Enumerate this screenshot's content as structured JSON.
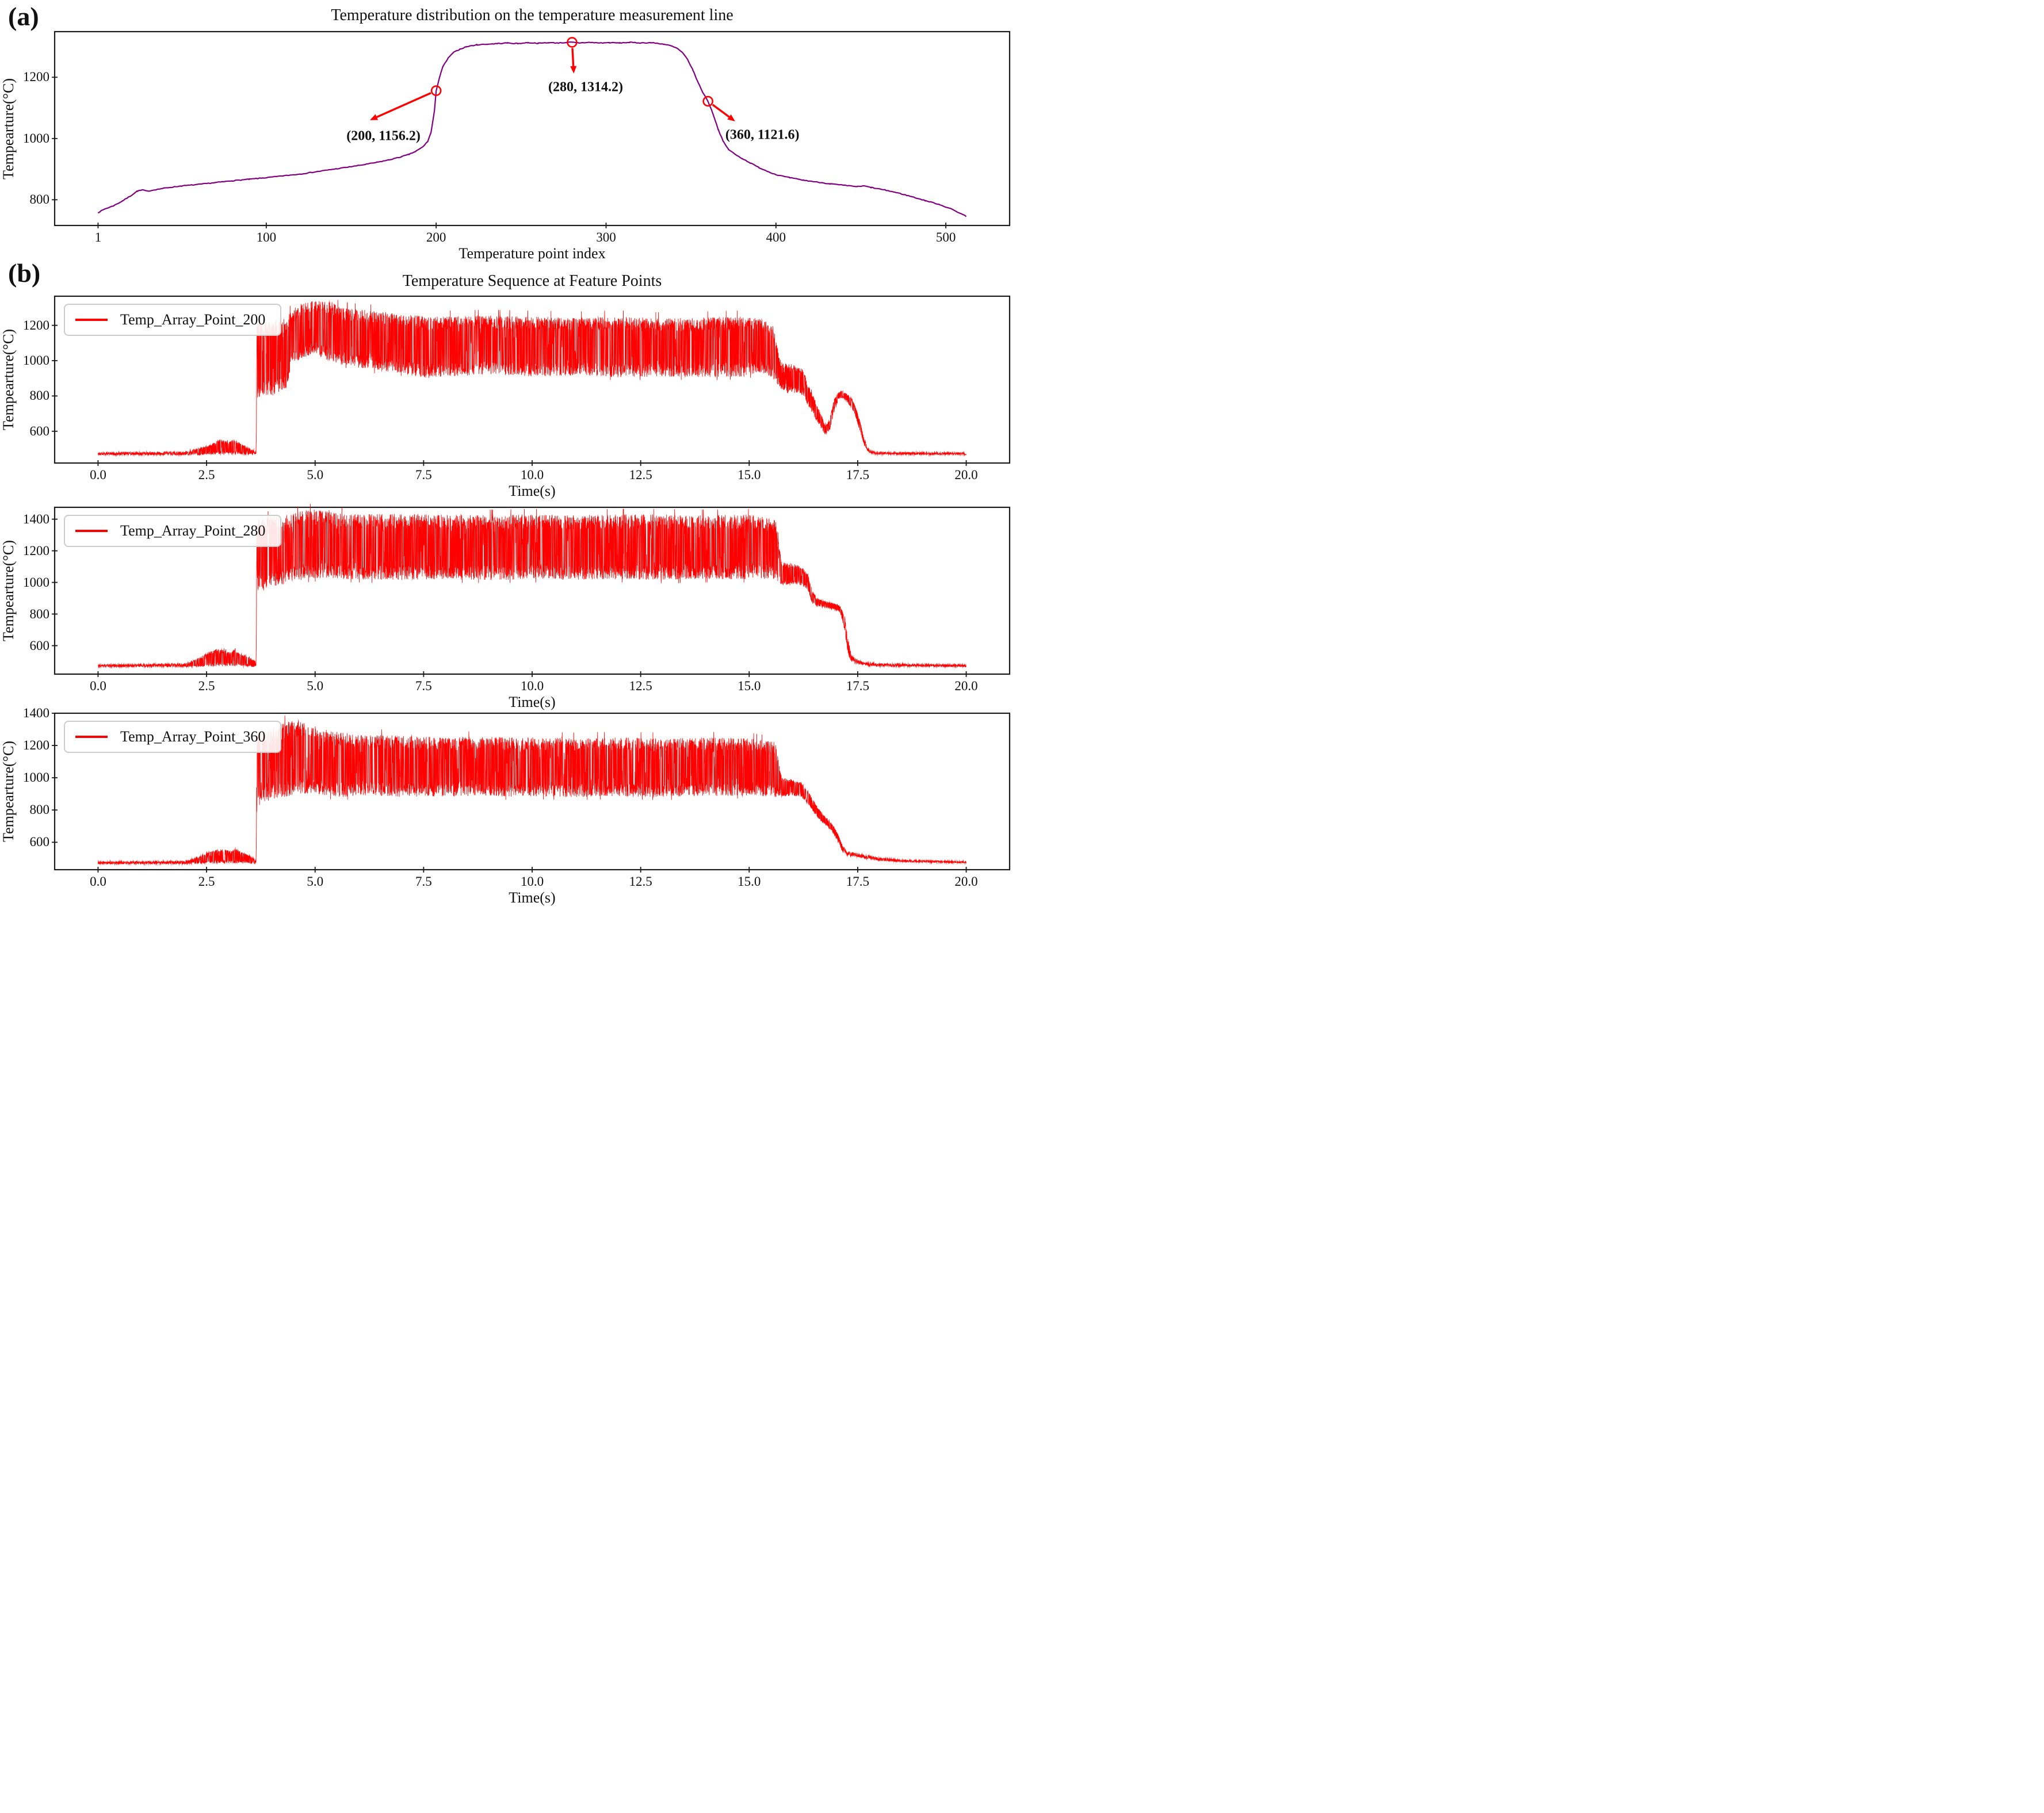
{
  "page": {
    "panel_a_label": "(a)",
    "panel_b_label": "(b)"
  },
  "chart_data": [
    {
      "type": "line",
      "title": "Temperature distribution on the temperature measurement line",
      "xlabel": "Temperature point index",
      "ylabel": "Tempearture(°C)",
      "legend_position": "none",
      "grid": false,
      "xticks": [
        "1",
        "100",
        "200",
        "300",
        "400",
        "500"
      ],
      "yticks": [
        "800",
        "1000",
        "1200"
      ],
      "xlim": [
        -24.55,
        537.55
      ],
      "ylim": [
        716,
        1349
      ],
      "line_color": "#800080",
      "annotation_color": "#ff0000",
      "annotations": [
        {
          "label": "(200, 1156.2)",
          "point": [
            200,
            1156.2
          ],
          "arrow_tip": [
            161,
            1060
          ],
          "label_center": [
            169,
            1008
          ]
        },
        {
          "label": "(280, 1314.2)",
          "point": [
            280,
            1314.2
          ],
          "arrow_tip": [
            281,
            1212
          ],
          "label_center": [
            288,
            1166
          ]
        },
        {
          "label": "(360, 1121.6)",
          "point": [
            360,
            1121.6
          ],
          "arrow_tip": [
            376,
            1056
          ],
          "label_center": [
            392,
            1010
          ]
        }
      ],
      "points": [
        [
          1,
          758
        ],
        [
          5,
          770
        ],
        [
          10,
          780
        ],
        [
          15,
          795
        ],
        [
          20,
          812
        ],
        [
          24,
          828
        ],
        [
          27,
          832
        ],
        [
          30,
          828
        ],
        [
          35,
          833
        ],
        [
          40,
          838
        ],
        [
          50,
          845
        ],
        [
          60,
          850
        ],
        [
          70,
          856
        ],
        [
          80,
          862
        ],
        [
          90,
          867
        ],
        [
          100,
          872
        ],
        [
          110,
          878
        ],
        [
          120,
          884
        ],
        [
          130,
          892
        ],
        [
          140,
          900
        ],
        [
          150,
          908
        ],
        [
          158,
          915
        ],
        [
          165,
          922
        ],
        [
          172,
          930
        ],
        [
          178,
          938
        ],
        [
          184,
          948
        ],
        [
          188,
          958
        ],
        [
          192,
          972
        ],
        [
          195,
          990
        ],
        [
          197,
          1020
        ],
        [
          199,
          1090
        ],
        [
          200,
          1156.2
        ],
        [
          202,
          1200
        ],
        [
          204,
          1235
        ],
        [
          207,
          1262
        ],
        [
          210,
          1280
        ],
        [
          214,
          1292
        ],
        [
          218,
          1300
        ],
        [
          224,
          1306
        ],
        [
          230,
          1308
        ],
        [
          236,
          1310
        ],
        [
          242,
          1312
        ],
        [
          248,
          1310
        ],
        [
          254,
          1313
        ],
        [
          260,
          1311
        ],
        [
          266,
          1313
        ],
        [
          272,
          1312
        ],
        [
          278,
          1314
        ],
        [
          280,
          1314.2
        ],
        [
          284,
          1312
        ],
        [
          290,
          1314
        ],
        [
          296,
          1312
        ],
        [
          302,
          1313
        ],
        [
          308,
          1312
        ],
        [
          314,
          1314
        ],
        [
          320,
          1312
        ],
        [
          326,
          1313
        ],
        [
          330,
          1311
        ],
        [
          334,
          1308
        ],
        [
          338,
          1303
        ],
        [
          342,
          1294
        ],
        [
          345,
          1280
        ],
        [
          348,
          1258
        ],
        [
          351,
          1225
        ],
        [
          354,
          1185
        ],
        [
          357,
          1150
        ],
        [
          360,
          1121.6
        ],
        [
          363,
          1080
        ],
        [
          366,
          1030
        ],
        [
          369,
          990
        ],
        [
          372,
          965
        ],
        [
          376,
          948
        ],
        [
          380,
          935
        ],
        [
          385,
          920
        ],
        [
          390,
          905
        ],
        [
          395,
          893
        ],
        [
          400,
          882
        ],
        [
          408,
          872
        ],
        [
          416,
          864
        ],
        [
          424,
          858
        ],
        [
          432,
          852
        ],
        [
          440,
          847
        ],
        [
          448,
          843
        ],
        [
          452,
          845
        ],
        [
          456,
          840
        ],
        [
          464,
          832
        ],
        [
          472,
          822
        ],
        [
          480,
          810
        ],
        [
          488,
          797
        ],
        [
          496,
          785
        ],
        [
          504,
          768
        ],
        [
          512,
          746
        ]
      ]
    },
    {
      "type": "line",
      "title": "Temperature Sequence at Feature Points",
      "legend": "Temp_Array_Point_200",
      "xlabel": "Time(s)",
      "ylabel": "Tempearture(°C)",
      "legend_position": "upper left",
      "grid": false,
      "xticks": [
        "0.0",
        "2.5",
        "5.0",
        "7.5",
        "10.0",
        "12.5",
        "15.0",
        "17.5",
        "20.0"
      ],
      "yticks": [
        "600",
        "800",
        "1000",
        "1200"
      ],
      "xlim": [
        -1,
        21
      ],
      "ylim": [
        420,
        1365
      ],
      "line_color": "#ff0000",
      "envelope": [
        [
          0.0,
          465,
          480
        ],
        [
          2.0,
          465,
          485
        ],
        [
          2.3,
          465,
          505
        ],
        [
          2.6,
          468,
          525
        ],
        [
          2.8,
          470,
          556
        ],
        [
          3.0,
          470,
          540
        ],
        [
          3.1,
          472,
          552
        ],
        [
          3.25,
          470,
          535
        ],
        [
          3.45,
          468,
          510
        ],
        [
          3.6,
          466,
          495
        ],
        [
          3.64,
          466,
          480
        ],
        [
          3.66,
          790,
          1215
        ],
        [
          4.0,
          800,
          1230
        ],
        [
          4.35,
          830,
          1240
        ],
        [
          4.45,
          980,
          1290
        ],
        [
          4.7,
          1010,
          1325
        ],
        [
          5.0,
          1040,
          1340
        ],
        [
          5.3,
          1000,
          1345
        ],
        [
          5.6,
          980,
          1300
        ],
        [
          6.0,
          960,
          1290
        ],
        [
          6.5,
          940,
          1280
        ],
        [
          7.0,
          930,
          1260
        ],
        [
          7.5,
          900,
          1260
        ],
        [
          8.0,
          910,
          1250
        ],
        [
          9.0,
          920,
          1255
        ],
        [
          10.0,
          910,
          1250
        ],
        [
          11.0,
          915,
          1245
        ],
        [
          12.0,
          905,
          1250
        ],
        [
          13.0,
          910,
          1240
        ],
        [
          14.0,
          905,
          1245
        ],
        [
          14.8,
          910,
          1250
        ],
        [
          15.3,
          930,
          1240
        ],
        [
          15.55,
          900,
          1200
        ],
        [
          15.7,
          840,
          1020
        ],
        [
          15.75,
          830,
          990
        ],
        [
          16.0,
          820,
          980
        ],
        [
          16.25,
          800,
          950
        ],
        [
          16.35,
          750,
          870
        ],
        [
          16.5,
          680,
          790
        ],
        [
          16.65,
          620,
          700
        ],
        [
          16.75,
          580,
          640
        ],
        [
          16.85,
          600,
          660
        ],
        [
          16.95,
          700,
          780
        ],
        [
          17.05,
          780,
          820
        ],
        [
          17.15,
          790,
          830
        ],
        [
          17.25,
          770,
          810
        ],
        [
          17.35,
          730,
          790
        ],
        [
          17.45,
          680,
          740
        ],
        [
          17.55,
          600,
          660
        ],
        [
          17.65,
          520,
          560
        ],
        [
          17.75,
          480,
          500
        ],
        [
          17.9,
          468,
          482
        ],
        [
          20.0,
          466,
          480
        ]
      ]
    },
    {
      "type": "line",
      "title": "",
      "legend": "Temp_Array_Point_280",
      "xlabel": "Time(s)",
      "ylabel": "Tempearture(°C)",
      "legend_position": "upper left",
      "grid": false,
      "xticks": [
        "0.0",
        "2.5",
        "5.0",
        "7.5",
        "10.0",
        "12.5",
        "15.0",
        "17.5",
        "20.0"
      ],
      "yticks": [
        "600",
        "800",
        "1000",
        "1200",
        "1400"
      ],
      "xlim": [
        -1,
        21
      ],
      "ylim": [
        420,
        1475
      ],
      "line_color": "#ff0000",
      "envelope": [
        [
          0.0,
          465,
          480
        ],
        [
          2.0,
          465,
          488
        ],
        [
          2.3,
          466,
          520
        ],
        [
          2.55,
          468,
          560
        ],
        [
          2.8,
          470,
          585
        ],
        [
          3.0,
          470,
          560
        ],
        [
          3.15,
          472,
          575
        ],
        [
          3.3,
          470,
          550
        ],
        [
          3.5,
          468,
          530
        ],
        [
          3.62,
          466,
          500
        ],
        [
          3.64,
          466,
          482
        ],
        [
          3.66,
          940,
          1400
        ],
        [
          4.0,
          960,
          1420
        ],
        [
          4.4,
          1000,
          1430
        ],
        [
          4.8,
          1020,
          1460
        ],
        [
          5.2,
          1030,
          1470
        ],
        [
          5.6,
          1020,
          1440
        ],
        [
          6.0,
          1020,
          1430
        ],
        [
          7.0,
          1015,
          1435
        ],
        [
          8.0,
          1020,
          1430
        ],
        [
          9.0,
          1015,
          1425
        ],
        [
          10.0,
          1020,
          1430
        ],
        [
          11.0,
          1015,
          1425
        ],
        [
          12.0,
          1020,
          1430
        ],
        [
          13.0,
          1015,
          1430
        ],
        [
          14.0,
          1020,
          1425
        ],
        [
          15.0,
          1020,
          1430
        ],
        [
          15.6,
          1020,
          1400
        ],
        [
          15.75,
          980,
          1130
        ],
        [
          16.0,
          990,
          1120
        ],
        [
          16.2,
          980,
          1100
        ],
        [
          16.35,
          950,
          1060
        ],
        [
          16.45,
          870,
          950
        ],
        [
          16.55,
          850,
          900
        ],
        [
          16.75,
          840,
          880
        ],
        [
          16.95,
          830,
          870
        ],
        [
          17.1,
          810,
          850
        ],
        [
          17.2,
          700,
          790
        ],
        [
          17.28,
          540,
          640
        ],
        [
          17.35,
          500,
          540
        ],
        [
          17.5,
          480,
          510
        ],
        [
          17.7,
          472,
          495
        ],
        [
          18.0,
          468,
          488
        ],
        [
          20.0,
          466,
          480
        ]
      ]
    },
    {
      "type": "line",
      "title": "",
      "legend": "Temp_Array_Point_360",
      "xlabel": "Time(s)",
      "ylabel": "Tempearture(°C)",
      "legend_position": "upper left",
      "grid": false,
      "xticks": [
        "0.0",
        "2.5",
        "5.0",
        "7.5",
        "10.0",
        "12.5",
        "15.0",
        "17.5",
        "20.0"
      ],
      "yticks": [
        "600",
        "800",
        "1000",
        "1200",
        "1400"
      ],
      "xlim": [
        -1,
        21
      ],
      "ylim": [
        430,
        1400
      ],
      "line_color": "#ff0000",
      "envelope": [
        [
          0.0,
          465,
          480
        ],
        [
          2.0,
          465,
          485
        ],
        [
          2.3,
          466,
          510
        ],
        [
          2.6,
          468,
          545
        ],
        [
          2.85,
          470,
          560
        ],
        [
          3.05,
          470,
          545
        ],
        [
          3.2,
          472,
          555
        ],
        [
          3.35,
          470,
          535
        ],
        [
          3.55,
          468,
          510
        ],
        [
          3.62,
          466,
          490
        ],
        [
          3.64,
          466,
          482
        ],
        [
          3.66,
          850,
          1280
        ],
        [
          4.0,
          860,
          1300
        ],
        [
          4.3,
          880,
          1350
        ],
        [
          4.6,
          900,
          1355
        ],
        [
          4.9,
          900,
          1330
        ],
        [
          5.2,
          890,
          1300
        ],
        [
          5.6,
          880,
          1280
        ],
        [
          6.0,
          890,
          1270
        ],
        [
          7.0,
          880,
          1260
        ],
        [
          8.0,
          885,
          1250
        ],
        [
          9.0,
          880,
          1255
        ],
        [
          10.0,
          885,
          1250
        ],
        [
          11.0,
          880,
          1245
        ],
        [
          12.0,
          885,
          1250
        ],
        [
          13.0,
          880,
          1245
        ],
        [
          14.0,
          885,
          1250
        ],
        [
          15.0,
          890,
          1245
        ],
        [
          15.6,
          880,
          1220
        ],
        [
          15.75,
          880,
          1000
        ],
        [
          16.0,
          890,
          990
        ],
        [
          16.2,
          880,
          970
        ],
        [
          16.35,
          840,
          920
        ],
        [
          16.5,
          780,
          850
        ],
        [
          16.65,
          730,
          790
        ],
        [
          16.8,
          700,
          750
        ],
        [
          16.95,
          650,
          700
        ],
        [
          17.05,
          600,
          650
        ],
        [
          17.15,
          540,
          580
        ],
        [
          17.25,
          515,
          545
        ],
        [
          17.45,
          510,
          535
        ],
        [
          17.7,
          495,
          520
        ],
        [
          18.0,
          485,
          505
        ],
        [
          18.5,
          478,
          492
        ],
        [
          20.0,
          470,
          482
        ]
      ]
    }
  ]
}
